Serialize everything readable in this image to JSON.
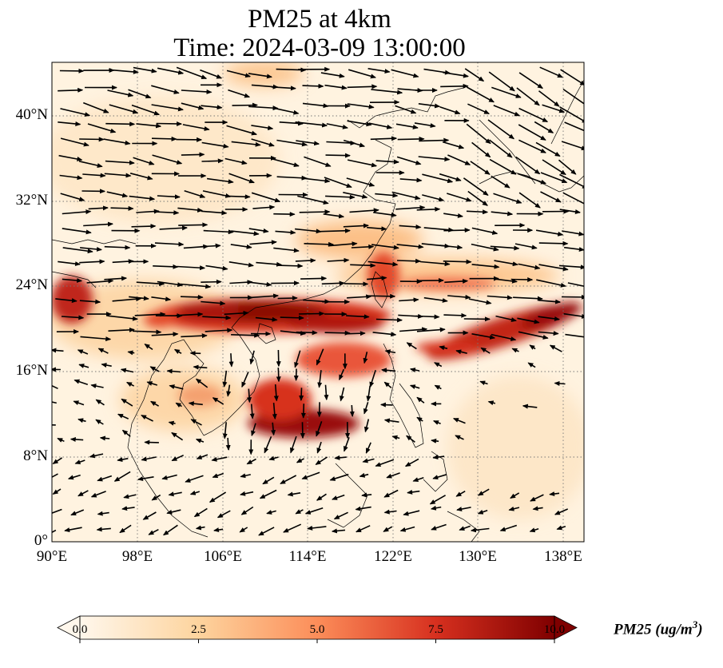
{
  "title": {
    "line1": "PM25 at 4km",
    "line2": "Time: 2024-03-09 13:00:00"
  },
  "axes": {
    "lat_labels": [
      "0°",
      "8°N",
      "16°N",
      "24°N",
      "32°N",
      "40°N"
    ],
    "lon_labels": [
      "90°E",
      "98°E",
      "106°E",
      "114°E",
      "122°E",
      "130°E",
      "138°E"
    ],
    "lat_range": [
      0,
      45
    ],
    "lon_range": [
      90,
      140
    ],
    "grid": "dotted"
  },
  "colorbar": {
    "label": "PM25 (ug/m",
    "label_sup": "3",
    "label_end": ")",
    "ticks": [
      "0.0",
      "2.5",
      "5.0",
      "7.5",
      "10.0"
    ],
    "range": [
      0,
      10
    ],
    "extend": "both",
    "colormap": "OrRd",
    "colors": [
      "#fff7ec",
      "#fdd49e",
      "#fc8d59",
      "#d7301f",
      "#7f0000"
    ]
  },
  "wind_vectors": {
    "color": "#000000",
    "predominant_direction": "westerly",
    "region_note": ""
  }
}
